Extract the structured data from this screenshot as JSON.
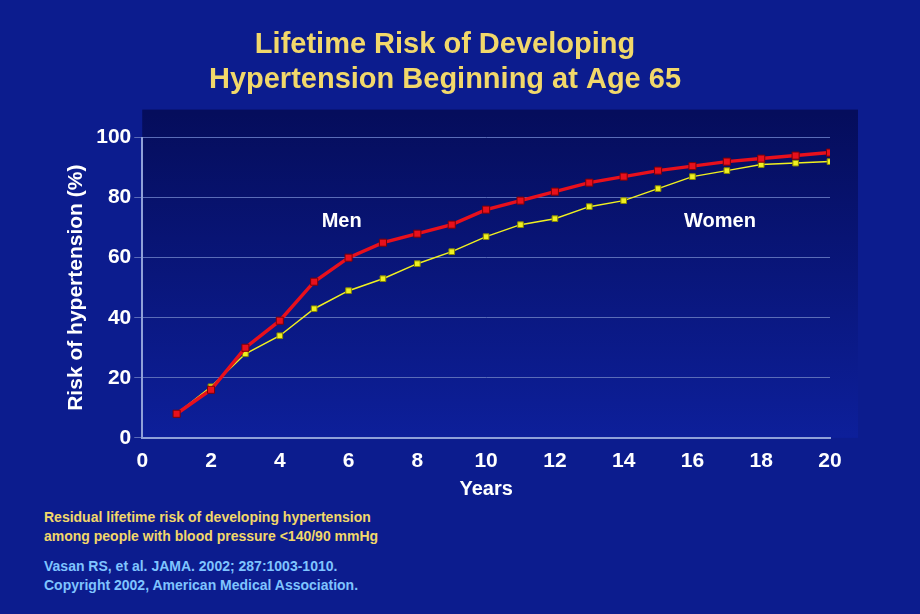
{
  "chart_data": {
    "type": "line",
    "title": [
      "Lifetime Risk of Developing",
      "Hypertension Beginning at Age 65"
    ],
    "x_label": "Years",
    "y_label": "Risk of hypertension (%)",
    "x": [
      1,
      2,
      3,
      4,
      5,
      6,
      7,
      8,
      9,
      10,
      11,
      12,
      13,
      14,
      15,
      16,
      17,
      18,
      19,
      20
    ],
    "series": [
      {
        "name": "Men",
        "color": "#e8101c",
        "marker": "square",
        "values": [
          8,
          16,
          30,
          39,
          52,
          60,
          65,
          68,
          71,
          76,
          79,
          82,
          85,
          87,
          89,
          90.5,
          92,
          93,
          94,
          95
        ]
      },
      {
        "name": "Women",
        "color": "#f0f020",
        "marker": "square",
        "values": [
          8,
          17,
          28,
          34,
          43,
          49,
          53,
          58,
          62,
          67,
          71,
          73,
          77,
          79,
          83,
          87,
          89,
          91,
          91.5,
          92
        ]
      }
    ],
    "annotations": [
      {
        "text": "Men",
        "x": 5.8,
        "y": 72
      },
      {
        "text": "Women",
        "x": 16.8,
        "y": 72
      }
    ],
    "xlim": [
      0,
      20
    ],
    "xticks": [
      0,
      2,
      4,
      6,
      8,
      10,
      12,
      14,
      16,
      18,
      20
    ],
    "ylim": [
      0,
      100
    ],
    "yticks": [
      0,
      20,
      40,
      60,
      80,
      100
    ],
    "grid": true,
    "notes": [
      "Residual lifetime risk of developing hypertension",
      "among people with blood pressure <140/90 mmHg"
    ],
    "source": [
      "Vasan RS, et al. JAMA. 2002; 287:1003-1010.",
      "Copyright 2002, American Medical Association."
    ]
  }
}
